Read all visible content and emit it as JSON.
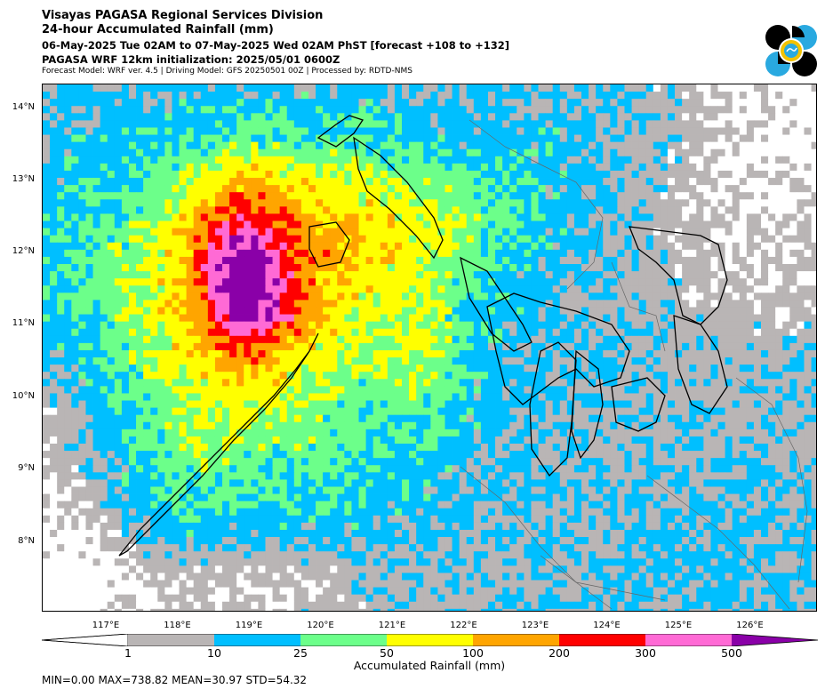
{
  "header": {
    "line1": "Visayas PAGASA Regional Services Division",
    "line2": "24-hour Accumulated Rainfall (mm)",
    "line3": "06-May-2025 Tue 02AM to 07-May-2025 Wed 02AM PhST [forecast +108 to +132]",
    "line4": "PAGASA WRF 12km initialization: 2025/05/01 0600Z",
    "line5": "Forecast Model: WRF ver. 4.5 | Driving Model: GFS 20250501 00Z | Processed by: RDTD-NMS"
  },
  "logo": {
    "icon": "pagasa-logo-icon",
    "colors": [
      "#000000",
      "#29a9e0",
      "#f2c200"
    ]
  },
  "map": {
    "lat_ticks": [
      "14°N",
      "13°N",
      "12°N",
      "11°N",
      "10°N",
      "9°N",
      "8°N"
    ],
    "lon_ticks": [
      "117°E",
      "118°E",
      "119°E",
      "120°E",
      "121°E",
      "122°E",
      "123°E",
      "124°E",
      "125°E",
      "126°E"
    ],
    "background": "#ffffff"
  },
  "colorbar": {
    "title": "Accumulated Rainfall (mm)",
    "ticks": [
      "1",
      "10",
      "25",
      "50",
      "100",
      "200",
      "300",
      "500"
    ],
    "colors": {
      "1-10": "#b9b5b5",
      "10-25": "#00bfff",
      "25-50": "#6cff8a",
      "50-100": "#ffff00",
      "100-200": "#ffa500",
      "200-300": "#ff0000",
      "300-500": "#ff6ad5",
      "500+": "#8a00a8"
    }
  },
  "stats": {
    "text": "MIN=0.00   MAX=738.82   MEAN=30.97   STD=54.32",
    "min": 0.0,
    "max": 738.82,
    "mean": 30.97,
    "std": 54.32
  }
}
